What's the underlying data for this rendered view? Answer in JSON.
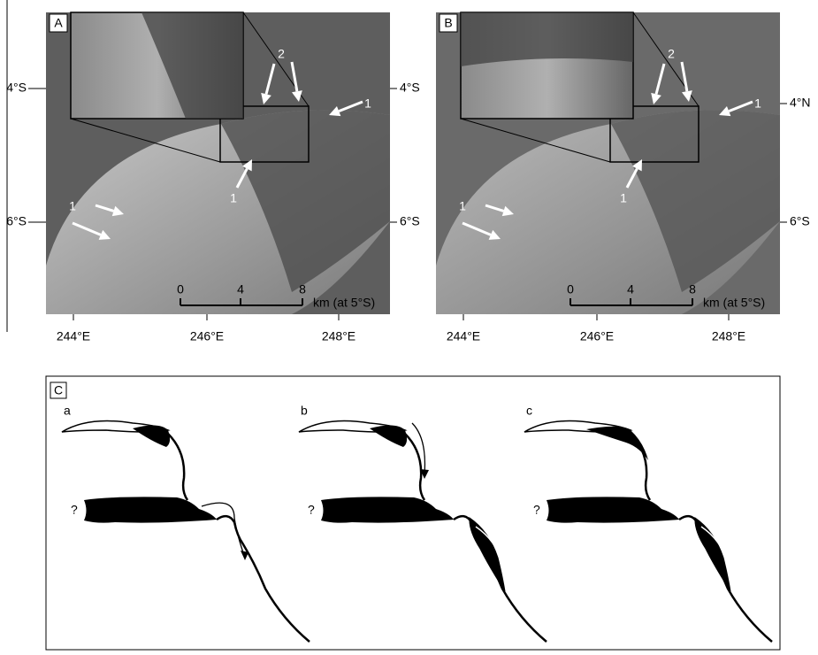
{
  "panels": [
    {
      "label": "A",
      "arrow_labels": [
        "2",
        "1",
        "1",
        "1"
      ],
      "lat_left": [
        "4°S",
        "6°S"
      ],
      "lat_right": [
        "4°S",
        "6°S"
      ],
      "scale": {
        "ticks": [
          "0",
          "4",
          "8"
        ],
        "unit": "km (at 5°S)"
      },
      "lon_labels": [
        "244°E",
        "246°E",
        "248°E"
      ]
    },
    {
      "label": "B",
      "arrow_labels": [
        "2",
        "1",
        "1",
        "1"
      ],
      "lat_right": [
        "4°N",
        "6°S"
      ],
      "scale": {
        "ticks": [
          "0",
          "4",
          "8"
        ],
        "unit": "km (at 5°S)"
      },
      "lon_labels": [
        "244°E",
        "246°E",
        "248°E"
      ]
    }
  ],
  "panel_c": {
    "label": "C",
    "sketches": [
      {
        "label": "a",
        "question": "?"
      },
      {
        "label": "b",
        "question": "?"
      },
      {
        "label": "c",
        "question": "?"
      }
    ]
  }
}
